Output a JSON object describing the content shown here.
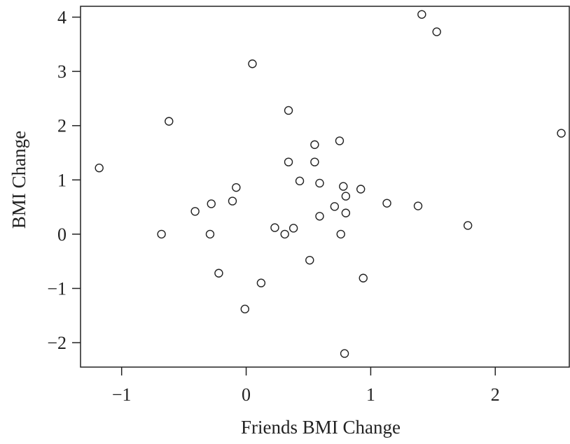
{
  "chart_data": {
    "type": "scatter",
    "title": "",
    "xlabel": "Friends BMI Change",
    "ylabel": "BMI Change",
    "xlim": [
      -1.33,
      2.6
    ],
    "ylim": [
      -2.45,
      4.2
    ],
    "xticks": [
      -1,
      0,
      1,
      2
    ],
    "yticks": [
      -2,
      -1,
      0,
      1,
      2,
      3,
      4
    ],
    "xtick_labels": [
      "−1",
      "0",
      "1",
      "2"
    ],
    "ytick_labels": [
      "−2",
      "−1",
      "0",
      "1",
      "2",
      "3",
      "4"
    ],
    "grid": false,
    "marker": "open-circle",
    "color": "#222222",
    "points": [
      {
        "x": 1.41,
        "y": 4.05
      },
      {
        "x": 1.53,
        "y": 3.73
      },
      {
        "x": 0.05,
        "y": 3.14
      },
      {
        "x": 0.34,
        "y": 2.28
      },
      {
        "x": -0.62,
        "y": 2.08
      },
      {
        "x": 2.53,
        "y": 1.86
      },
      {
        "x": 0.75,
        "y": 1.72
      },
      {
        "x": 0.55,
        "y": 1.65
      },
      {
        "x": 0.34,
        "y": 1.33
      },
      {
        "x": 0.55,
        "y": 1.33
      },
      {
        "x": -1.18,
        "y": 1.22
      },
      {
        "x": 0.43,
        "y": 0.98
      },
      {
        "x": 0.59,
        "y": 0.94
      },
      {
        "x": 0.78,
        "y": 0.88
      },
      {
        "x": -0.08,
        "y": 0.86
      },
      {
        "x": 0.92,
        "y": 0.83
      },
      {
        "x": 0.8,
        "y": 0.7
      },
      {
        "x": -0.11,
        "y": 0.61
      },
      {
        "x": 1.13,
        "y": 0.57
      },
      {
        "x": -0.28,
        "y": 0.56
      },
      {
        "x": 1.38,
        "y": 0.52
      },
      {
        "x": 0.71,
        "y": 0.51
      },
      {
        "x": -0.41,
        "y": 0.42
      },
      {
        "x": 0.8,
        "y": 0.39
      },
      {
        "x": 0.59,
        "y": 0.33
      },
      {
        "x": 1.78,
        "y": 0.16
      },
      {
        "x": 0.23,
        "y": 0.12
      },
      {
        "x": 0.38,
        "y": 0.11
      },
      {
        "x": -0.68,
        "y": 0.0
      },
      {
        "x": -0.29,
        "y": 0.0
      },
      {
        "x": 0.31,
        "y": 0.0
      },
      {
        "x": 0.76,
        "y": 0.0
      },
      {
        "x": 0.51,
        "y": -0.48
      },
      {
        "x": -0.22,
        "y": -0.72
      },
      {
        "x": 0.94,
        "y": -0.81
      },
      {
        "x": 0.12,
        "y": -0.9
      },
      {
        "x": -0.01,
        "y": -1.38
      },
      {
        "x": 0.79,
        "y": -2.2
      }
    ]
  }
}
